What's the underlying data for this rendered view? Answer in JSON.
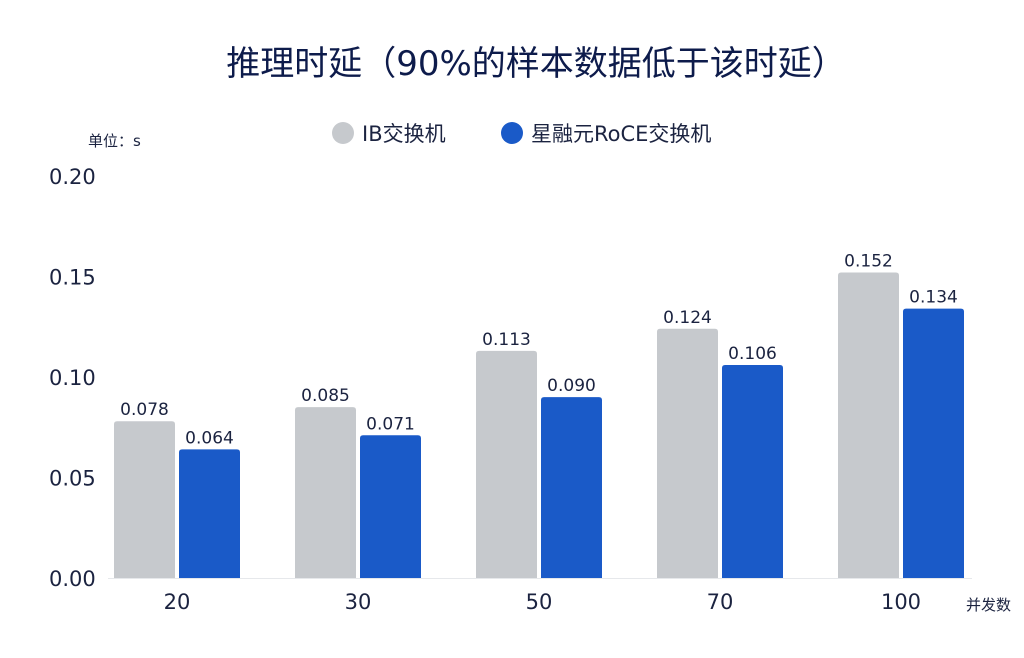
{
  "chart_data": {
    "type": "bar",
    "title": "推理时延（90%的样本数据低于该时延）",
    "unit_label": "单位：s",
    "xlabel": "并发数",
    "ylabel": "",
    "ylim": [
      0,
      0.2
    ],
    "yticks": [
      "0.00",
      "0.05",
      "0.10",
      "0.15",
      "0.20"
    ],
    "yticks_values": [
      0,
      0.05,
      0.1,
      0.15,
      0.2
    ],
    "grid": false,
    "legend_placement": "top-center",
    "categories": [
      "20",
      "30",
      "50",
      "70",
      "100"
    ],
    "series": [
      {
        "name": "IB交换机",
        "color": "#c6c9cd",
        "values": [
          0.078,
          0.085,
          0.113,
          0.124,
          0.152
        ],
        "labels": [
          "0.078",
          "0.085",
          "0.113",
          "0.124",
          "0.152"
        ]
      },
      {
        "name": "星融元RoCE交换机",
        "color": "#1a5ac8",
        "values": [
          0.064,
          0.071,
          0.09,
          0.106,
          0.134
        ],
        "labels": [
          "0.064",
          "0.071",
          "0.090",
          "0.106",
          "0.134"
        ]
      }
    ]
  }
}
